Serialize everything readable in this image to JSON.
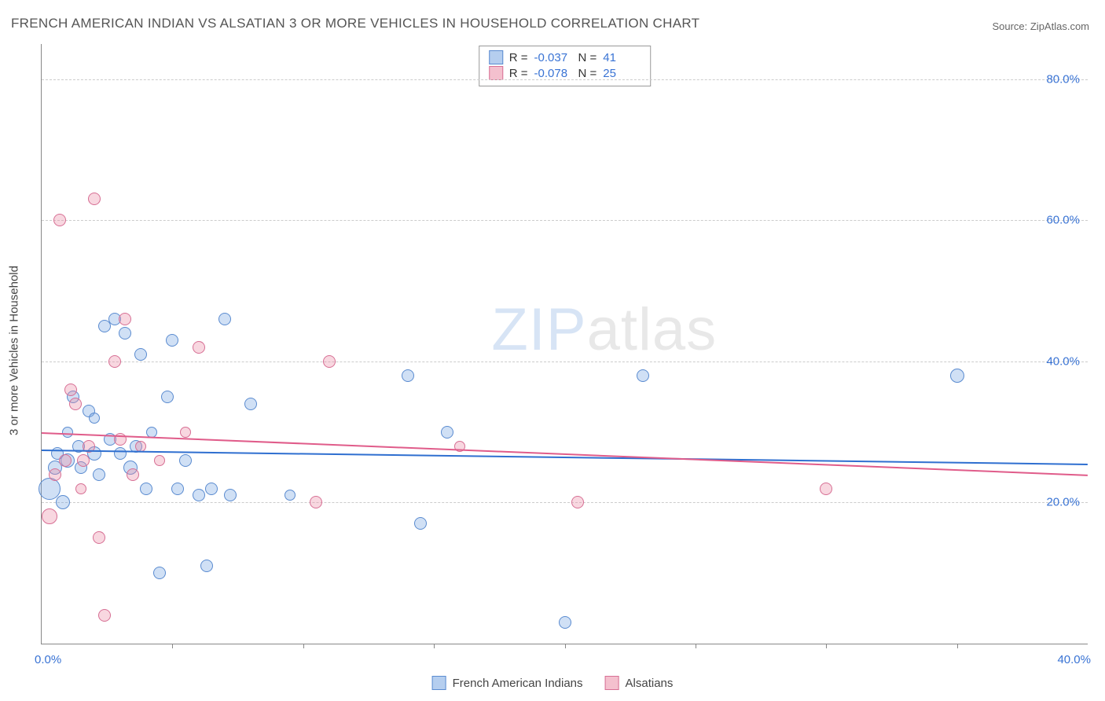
{
  "title": "FRENCH AMERICAN INDIAN VS ALSATIAN 3 OR MORE VEHICLES IN HOUSEHOLD CORRELATION CHART",
  "source": "Source: ZipAtlas.com",
  "y_axis_label": "3 or more Vehicles in Household",
  "watermark": {
    "zip": "ZIP",
    "atlas": "atlas"
  },
  "chart": {
    "type": "scatter",
    "xlim": [
      0,
      40
    ],
    "ylim": [
      0,
      85
    ],
    "x_ticks": [
      0,
      40
    ],
    "x_tick_labels": [
      "0.0%",
      "40.0%"
    ],
    "x_minor_ticks": [
      5,
      10,
      15,
      20,
      25,
      30,
      35
    ],
    "y_gridlines": [
      20,
      40,
      60,
      80
    ],
    "y_tick_labels": [
      "20.0%",
      "40.0%",
      "60.0%",
      "80.0%"
    ],
    "background_color": "#ffffff",
    "grid_color": "#cccccc",
    "axis_color": "#888888",
    "series": [
      {
        "name": "French American Indians",
        "fill": "rgba(120,165,225,0.35)",
        "stroke": "#5a8bd0",
        "trend_color": "#2f6fd0",
        "trend": {
          "y_at_x0": 27.5,
          "y_at_xmax": 25.5
        },
        "R": "-0.037",
        "N": "41",
        "points": [
          {
            "x": 0.3,
            "y": 22,
            "r": 14
          },
          {
            "x": 0.5,
            "y": 25,
            "r": 9
          },
          {
            "x": 0.6,
            "y": 27,
            "r": 8
          },
          {
            "x": 0.8,
            "y": 20,
            "r": 9
          },
          {
            "x": 1.0,
            "y": 26,
            "r": 9
          },
          {
            "x": 1.2,
            "y": 35,
            "r": 8
          },
          {
            "x": 1.4,
            "y": 28,
            "r": 8
          },
          {
            "x": 1.5,
            "y": 25,
            "r": 8
          },
          {
            "x": 1.8,
            "y": 33,
            "r": 8
          },
          {
            "x": 2.0,
            "y": 27,
            "r": 9
          },
          {
            "x": 2.2,
            "y": 24,
            "r": 8
          },
          {
            "x": 2.4,
            "y": 45,
            "r": 8
          },
          {
            "x": 2.6,
            "y": 29,
            "r": 8
          },
          {
            "x": 2.8,
            "y": 46,
            "r": 8
          },
          {
            "x": 3.0,
            "y": 27,
            "r": 8
          },
          {
            "x": 3.2,
            "y": 44,
            "r": 8
          },
          {
            "x": 3.4,
            "y": 25,
            "r": 9
          },
          {
            "x": 3.6,
            "y": 28,
            "r": 8
          },
          {
            "x": 3.8,
            "y": 41,
            "r": 8
          },
          {
            "x": 4.0,
            "y": 22,
            "r": 8
          },
          {
            "x": 4.2,
            "y": 30,
            "r": 7
          },
          {
            "x": 4.5,
            "y": 10,
            "r": 8
          },
          {
            "x": 4.8,
            "y": 35,
            "r": 8
          },
          {
            "x": 5.0,
            "y": 43,
            "r": 8
          },
          {
            "x": 5.2,
            "y": 22,
            "r": 8
          },
          {
            "x": 5.5,
            "y": 26,
            "r": 8
          },
          {
            "x": 6.0,
            "y": 21,
            "r": 8
          },
          {
            "x": 6.3,
            "y": 11,
            "r": 8
          },
          {
            "x": 6.5,
            "y": 22,
            "r": 8
          },
          {
            "x": 7.0,
            "y": 46,
            "r": 8
          },
          {
            "x": 7.2,
            "y": 21,
            "r": 8
          },
          {
            "x": 8.0,
            "y": 34,
            "r": 8
          },
          {
            "x": 9.5,
            "y": 21,
            "r": 7
          },
          {
            "x": 14.0,
            "y": 38,
            "r": 8
          },
          {
            "x": 14.5,
            "y": 17,
            "r": 8
          },
          {
            "x": 15.5,
            "y": 30,
            "r": 8
          },
          {
            "x": 20.0,
            "y": 3,
            "r": 8
          },
          {
            "x": 23.0,
            "y": 38,
            "r": 8
          },
          {
            "x": 35.0,
            "y": 38,
            "r": 9
          },
          {
            "x": 1.0,
            "y": 30,
            "r": 7
          },
          {
            "x": 2.0,
            "y": 32,
            "r": 7
          }
        ]
      },
      {
        "name": "Alsatians",
        "fill": "rgba(235,140,165,0.35)",
        "stroke": "#d76f94",
        "trend_color": "#e05c8a",
        "trend": {
          "y_at_x0": 30.0,
          "y_at_xmax": 24.0
        },
        "R": "-0.078",
        "N": "25",
        "points": [
          {
            "x": 0.3,
            "y": 18,
            "r": 10
          },
          {
            "x": 0.5,
            "y": 24,
            "r": 8
          },
          {
            "x": 0.7,
            "y": 60,
            "r": 8
          },
          {
            "x": 0.9,
            "y": 26,
            "r": 8
          },
          {
            "x": 1.1,
            "y": 36,
            "r": 8
          },
          {
            "x": 1.3,
            "y": 34,
            "r": 8
          },
          {
            "x": 1.6,
            "y": 26,
            "r": 8
          },
          {
            "x": 1.8,
            "y": 28,
            "r": 8
          },
          {
            "x": 2.0,
            "y": 63,
            "r": 8
          },
          {
            "x": 2.2,
            "y": 15,
            "r": 8
          },
          {
            "x": 2.4,
            "y": 4,
            "r": 8
          },
          {
            "x": 2.8,
            "y": 40,
            "r": 8
          },
          {
            "x": 3.0,
            "y": 29,
            "r": 8
          },
          {
            "x": 3.2,
            "y": 46,
            "r": 8
          },
          {
            "x": 3.5,
            "y": 24,
            "r": 8
          },
          {
            "x": 3.8,
            "y": 28,
            "r": 7
          },
          {
            "x": 4.5,
            "y": 26,
            "r": 7
          },
          {
            "x": 5.5,
            "y": 30,
            "r": 7
          },
          {
            "x": 6.0,
            "y": 42,
            "r": 8
          },
          {
            "x": 10.5,
            "y": 20,
            "r": 8
          },
          {
            "x": 11.0,
            "y": 40,
            "r": 8
          },
          {
            "x": 16.0,
            "y": 28,
            "r": 7
          },
          {
            "x": 20.5,
            "y": 20,
            "r": 8
          },
          {
            "x": 30.0,
            "y": 22,
            "r": 8
          },
          {
            "x": 1.5,
            "y": 22,
            "r": 7
          }
        ]
      }
    ]
  },
  "stats_labels": {
    "R": "R =",
    "N": "N ="
  },
  "legend": {
    "items": [
      {
        "label": "French American Indians",
        "fill": "rgba(120,165,225,0.55)",
        "stroke": "#5a8bd0"
      },
      {
        "label": "Alsatians",
        "fill": "rgba(235,140,165,0.55)",
        "stroke": "#d76f94"
      }
    ]
  }
}
